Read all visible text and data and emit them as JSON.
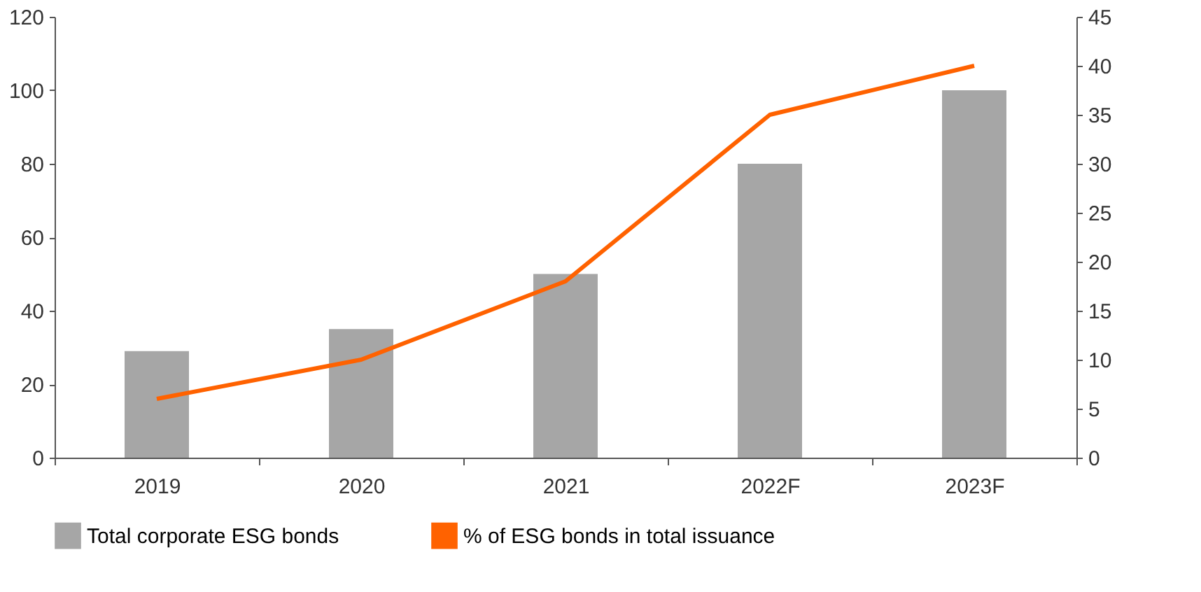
{
  "chart_data": {
    "type": "bar",
    "categories": [
      "2019",
      "2020",
      "2021",
      "2022F",
      "2023F"
    ],
    "series": [
      {
        "name": "Total corporate ESG bonds",
        "color": "#a6a6a6",
        "values": [
          29,
          35,
          50,
          80,
          100
        ]
      },
      {
        "name": "% of ESG bonds in total issuance",
        "type": "line",
        "axis": "y2",
        "color": "#ff6200",
        "values": [
          6,
          10,
          18,
          35,
          40
        ]
      }
    ],
    "ylim": [
      0,
      120
    ],
    "yticks": [
      0,
      20,
      40,
      60,
      80,
      100,
      120
    ],
    "y2lim": [
      0,
      45
    ],
    "y2ticks": [
      0,
      5,
      10,
      15,
      20,
      25,
      30,
      35,
      40,
      45
    ],
    "grid": false,
    "legend": "bottom",
    "marker": "none",
    "line_style": "solid"
  }
}
